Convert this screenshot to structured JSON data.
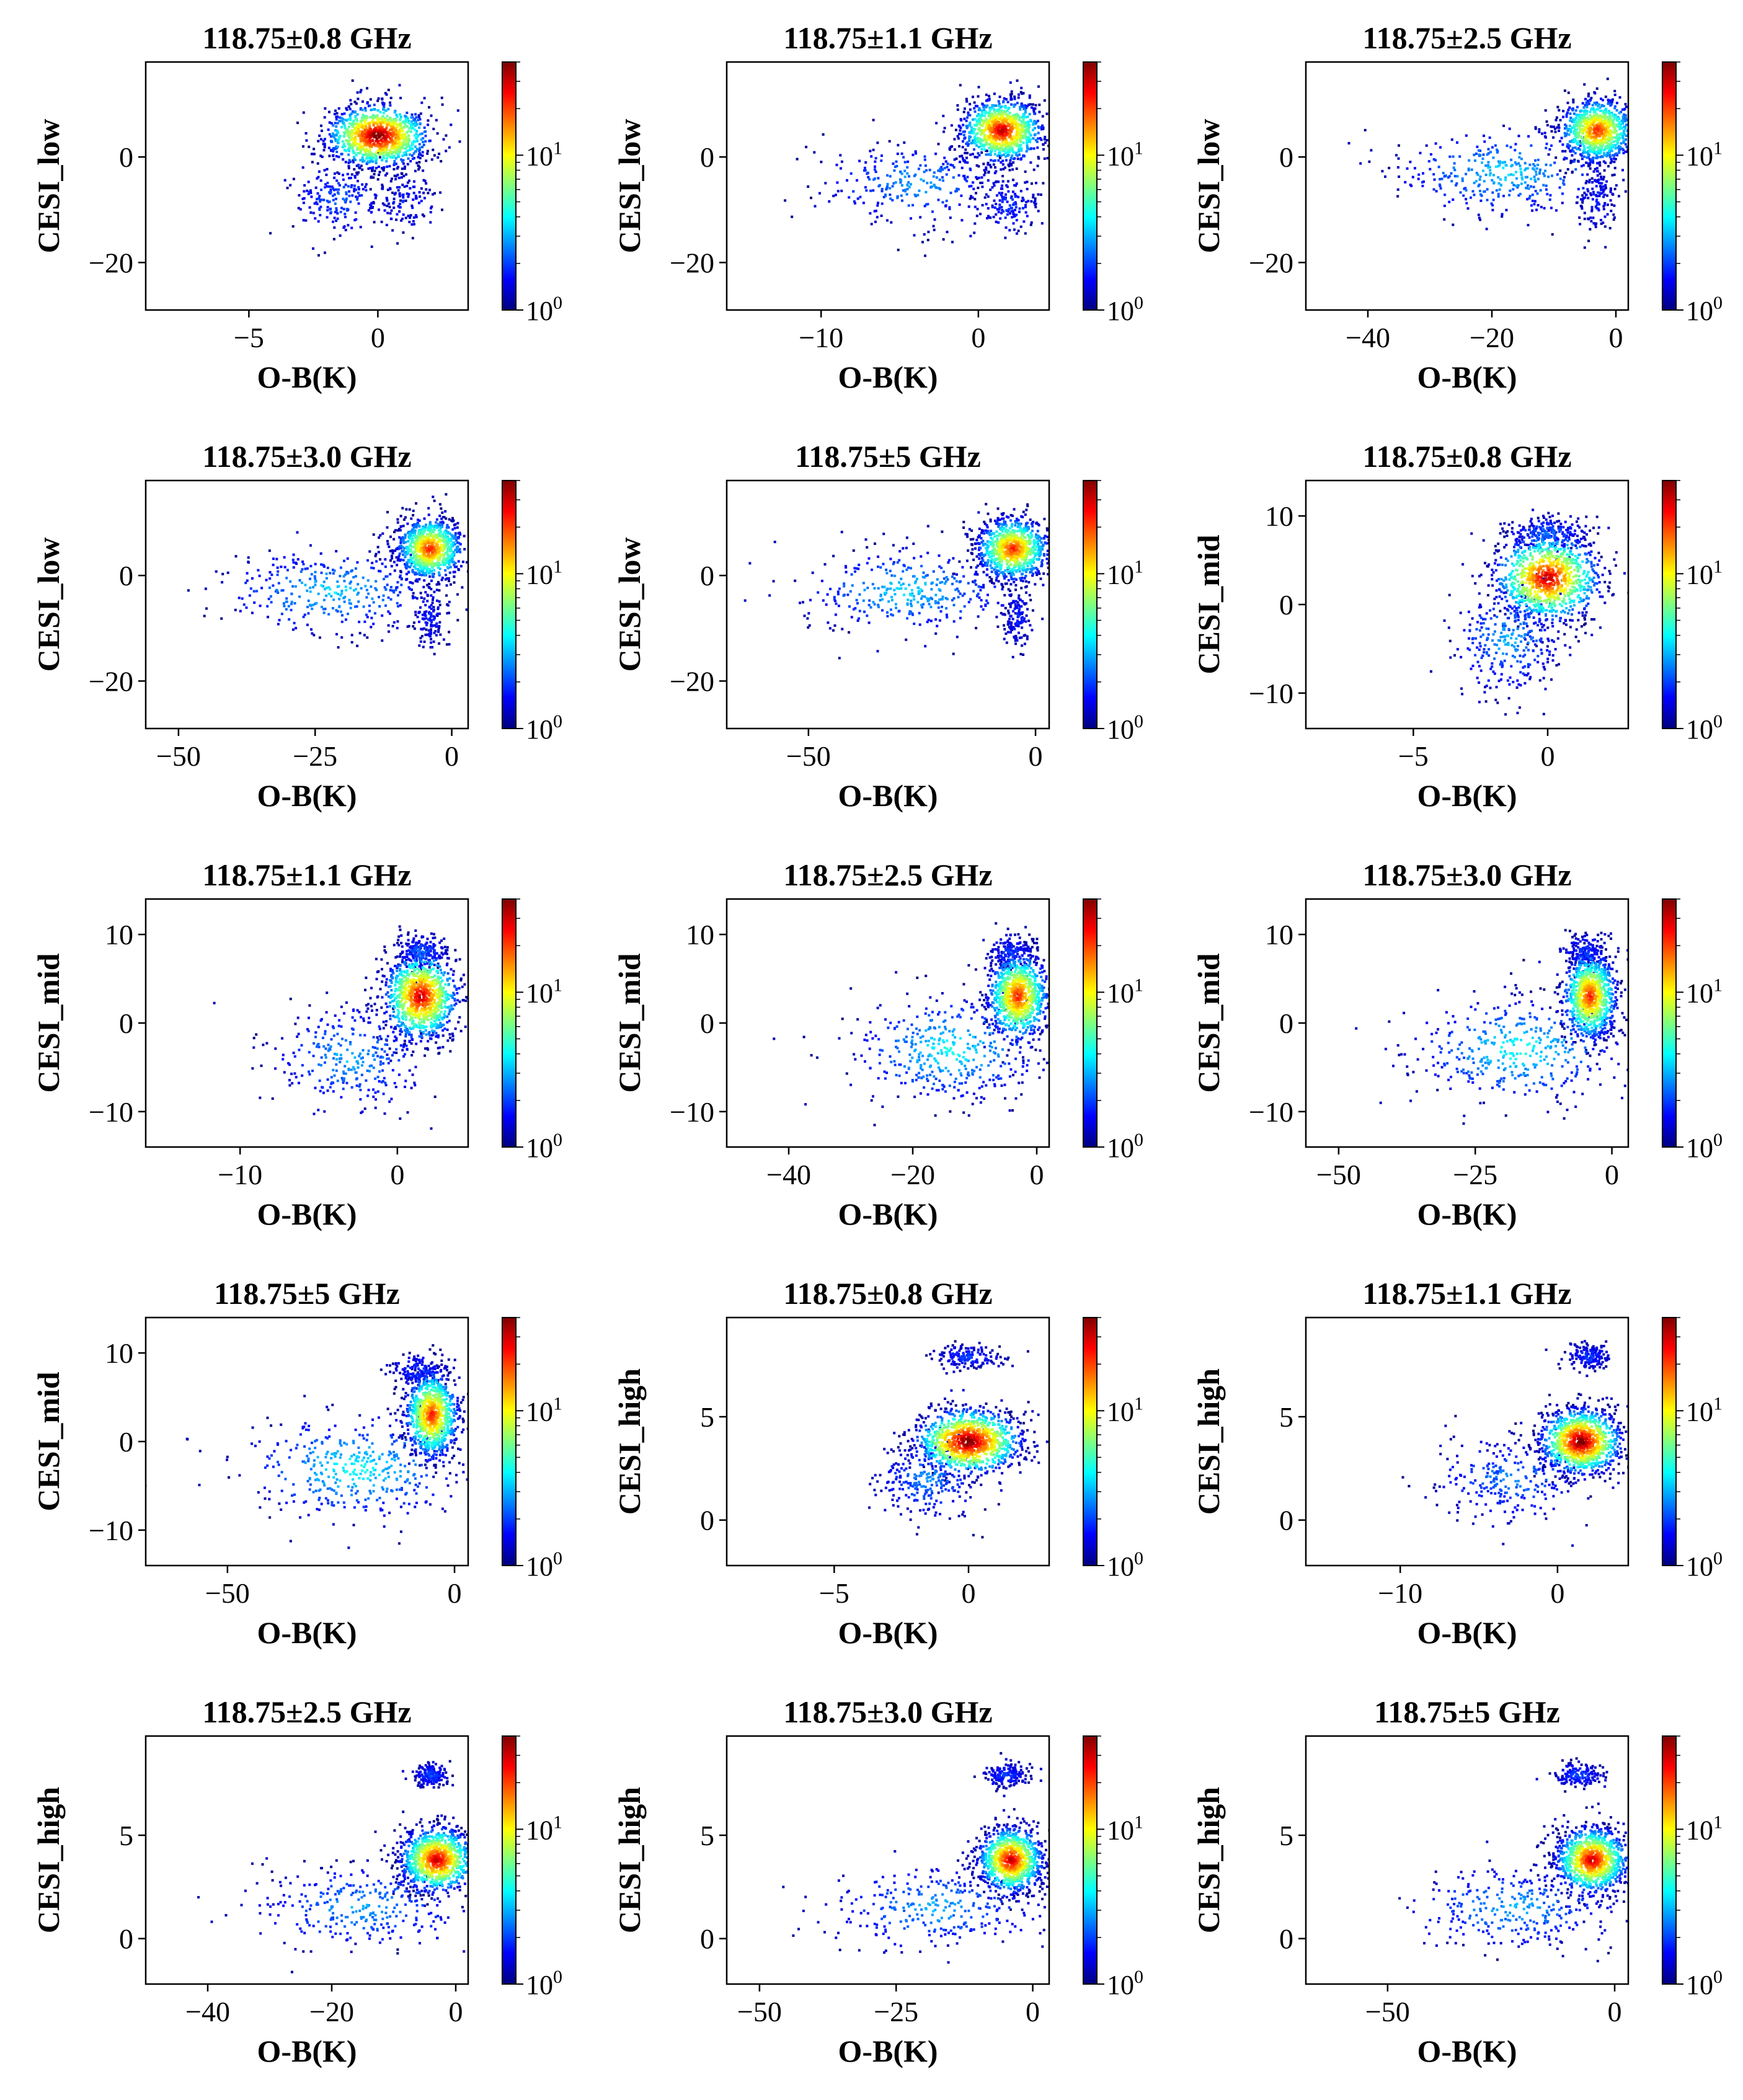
{
  "colors": {
    "colormap": [
      "#00007f",
      "#0000ff",
      "#007fff",
      "#00ffff",
      "#7fff7f",
      "#ffff00",
      "#ff7f00",
      "#ff0000",
      "#7f0000"
    ],
    "axis": "#000000",
    "background": "#ffffff"
  },
  "chart_data": [
    {
      "type": "scatter",
      "title": "118.75±0.8 GHz",
      "xlabel": "O-B(K)",
      "ylabel": "CESI_low",
      "xlim": [
        -9,
        3.5
      ],
      "ylim": [
        -29,
        18
      ],
      "xticks": [
        -5,
        0
      ],
      "yticks": [
        -20,
        0
      ],
      "colorbar": {
        "scale": "log",
        "ticks": [
          "10^0",
          "10^1"
        ],
        "range": [
          1,
          40
        ]
      },
      "clusters": [
        {
          "x": 0,
          "y": 4,
          "sx": 1.0,
          "sy": 3.0,
          "n": 1100
        },
        {
          "x": -1.5,
          "y": -8,
          "sx": 0.9,
          "sy": 3.5,
          "n": 200
        },
        {
          "x": 1.0,
          "y": -8,
          "sx": 0.6,
          "sy": 3,
          "n": 120
        }
      ],
      "density_peak": [
        0,
        4
      ]
    },
    {
      "type": "scatter",
      "title": "118.75±1.1 GHz",
      "xlabel": "O-B(K)",
      "ylabel": "CESI_low",
      "xlim": [
        -16,
        4.5
      ],
      "ylim": [
        -29,
        18
      ],
      "xticks": [
        -10,
        0
      ],
      "yticks": [
        -20,
        0
      ],
      "colorbar": {
        "scale": "log",
        "ticks": [
          "10^0",
          "10^1"
        ],
        "range": [
          1,
          40
        ]
      },
      "clusters": [
        {
          "x": 1.5,
          "y": 5,
          "sx": 1.3,
          "sy": 3,
          "n": 1000
        },
        {
          "x": -4,
          "y": -5,
          "sx": 3,
          "sy": 4,
          "n": 280
        },
        {
          "x": 2,
          "y": -9,
          "sx": 1,
          "sy": 3,
          "n": 150
        }
      ],
      "density_peak": [
        1.5,
        5
      ]
    },
    {
      "type": "scatter",
      "title": "118.75±2.5 GHz",
      "xlabel": "O-B(K)",
      "ylabel": "CESI_low",
      "xlim": [
        -50,
        2
      ],
      "ylim": [
        -29,
        18
      ],
      "xticks": [
        -40,
        -20,
        0
      ],
      "yticks": [
        -20,
        0
      ],
      "colorbar": {
        "scale": "log",
        "ticks": [
          "10^0",
          "10^1"
        ],
        "range": [
          1,
          40
        ]
      },
      "clusters": [
        {
          "x": -3,
          "y": 5,
          "sx": 3,
          "sy": 3,
          "n": 900
        },
        {
          "x": -18,
          "y": -3,
          "sx": 9,
          "sy": 4,
          "n": 350
        },
        {
          "x": -3,
          "y": -8,
          "sx": 1.5,
          "sy": 3,
          "n": 120
        }
      ],
      "density_peak": [
        -3,
        5
      ]
    },
    {
      "type": "scatter",
      "title": "118.75±3.0 GHz",
      "xlabel": "O-B(K)",
      "ylabel": "CESI_low",
      "xlim": [
        -56,
        3
      ],
      "ylim": [
        -29,
        18
      ],
      "xticks": [
        -50,
        -25,
        0
      ],
      "yticks": [
        -20,
        0
      ],
      "colorbar": {
        "scale": "log",
        "ticks": [
          "10^0",
          "10^1"
        ],
        "range": [
          1,
          40
        ]
      },
      "clusters": [
        {
          "x": -4,
          "y": 5,
          "sx": 3,
          "sy": 3,
          "n": 900
        },
        {
          "x": -22,
          "y": -3,
          "sx": 10,
          "sy": 4,
          "n": 350
        },
        {
          "x": -4,
          "y": -8,
          "sx": 1.5,
          "sy": 3,
          "n": 120
        }
      ],
      "density_peak": [
        -4,
        5
      ]
    },
    {
      "type": "scatter",
      "title": "118.75±5 GHz",
      "xlabel": "O-B(K)",
      "ylabel": "CESI_low",
      "xlim": [
        -68,
        3
      ],
      "ylim": [
        -29,
        18
      ],
      "xticks": [
        -50,
        0
      ],
      "yticks": [
        -20,
        0
      ],
      "colorbar": {
        "scale": "log",
        "ticks": [
          "10^0",
          "10^1"
        ],
        "range": [
          1,
          40
        ]
      },
      "clusters": [
        {
          "x": -5,
          "y": 5,
          "sx": 4,
          "sy": 3,
          "n": 900
        },
        {
          "x": -28,
          "y": -3,
          "sx": 12,
          "sy": 4,
          "n": 350
        },
        {
          "x": -4,
          "y": -8,
          "sx": 1.5,
          "sy": 3,
          "n": 120
        }
      ],
      "density_peak": [
        -5,
        5
      ]
    },
    {
      "type": "scatter",
      "title": "118.75±0.8 GHz",
      "xlabel": "O-B(K)",
      "ylabel": "CESI_mid",
      "xlim": [
        -9,
        3
      ],
      "ylim": [
        -14,
        14
      ],
      "xticks": [
        -5,
        0
      ],
      "yticks": [
        -10,
        0,
        10
      ],
      "colorbar": {
        "scale": "log",
        "ticks": [
          "10^0",
          "10^1"
        ],
        "range": [
          1,
          40
        ]
      },
      "clusters": [
        {
          "x": 0,
          "y": 3,
          "sx": 1.0,
          "sy": 2.5,
          "n": 1000
        },
        {
          "x": -1.5,
          "y": -4,
          "sx": 1.0,
          "sy": 3,
          "n": 300
        },
        {
          "x": 0,
          "y": 8,
          "sx": 0.8,
          "sy": 1,
          "n": 200
        }
      ],
      "density_peak": [
        0,
        3
      ]
    },
    {
      "type": "scatter",
      "title": "118.75±1.1 GHz",
      "xlabel": "O-B(K)",
      "ylabel": "CESI_mid",
      "xlim": [
        -16,
        4.5
      ],
      "ylim": [
        -14,
        14
      ],
      "xticks": [
        -10,
        0
      ],
      "yticks": [
        -10,
        0,
        10
      ],
      "colorbar": {
        "scale": "log",
        "ticks": [
          "10^0",
          "10^1"
        ],
        "range": [
          1,
          40
        ]
      },
      "clusters": [
        {
          "x": 1.5,
          "y": 3,
          "sx": 1.2,
          "sy": 2.5,
          "n": 1000
        },
        {
          "x": -3,
          "y": -4,
          "sx": 2.5,
          "sy": 3,
          "n": 300
        },
        {
          "x": 1.5,
          "y": 8,
          "sx": 0.8,
          "sy": 1,
          "n": 200
        }
      ],
      "density_peak": [
        1.5,
        3
      ]
    },
    {
      "type": "scatter",
      "title": "118.75±2.5 GHz",
      "xlabel": "O-B(K)",
      "ylabel": "CESI_mid",
      "xlim": [
        -50,
        2
      ],
      "ylim": [
        -14,
        14
      ],
      "xticks": [
        -40,
        -20,
        0
      ],
      "yticks": [
        -10,
        0,
        10
      ],
      "colorbar": {
        "scale": "log",
        "ticks": [
          "10^0",
          "10^1"
        ],
        "range": [
          1,
          40
        ]
      },
      "clusters": [
        {
          "x": -3,
          "y": 3,
          "sx": 2.5,
          "sy": 2.5,
          "n": 900
        },
        {
          "x": -14,
          "y": -3,
          "sx": 8,
          "sy": 3,
          "n": 400
        },
        {
          "x": -4,
          "y": 8,
          "sx": 2,
          "sy": 1,
          "n": 150
        }
      ],
      "density_peak": [
        -3,
        3
      ]
    },
    {
      "type": "scatter",
      "title": "118.75±3.0 GHz",
      "xlabel": "O-B(K)",
      "ylabel": "CESI_mid",
      "xlim": [
        -56,
        3
      ],
      "ylim": [
        -14,
        14
      ],
      "xticks": [
        -50,
        -25,
        0
      ],
      "yticks": [
        -10,
        0,
        10
      ],
      "colorbar": {
        "scale": "log",
        "ticks": [
          "10^0",
          "10^1"
        ],
        "range": [
          1,
          40
        ]
      },
      "clusters": [
        {
          "x": -4,
          "y": 3,
          "sx": 2.5,
          "sy": 2.5,
          "n": 900
        },
        {
          "x": -17,
          "y": -3,
          "sx": 10,
          "sy": 3,
          "n": 400
        },
        {
          "x": -5,
          "y": 8,
          "sx": 2,
          "sy": 1,
          "n": 150
        }
      ],
      "density_peak": [
        -4,
        3
      ]
    },
    {
      "type": "scatter",
      "title": "118.75±5 GHz",
      "xlabel": "O-B(K)",
      "ylabel": "CESI_mid",
      "xlim": [
        -68,
        3
      ],
      "ylim": [
        -14,
        14
      ],
      "xticks": [
        -50,
        0
      ],
      "yticks": [
        -10,
        0,
        10
      ],
      "colorbar": {
        "scale": "log",
        "ticks": [
          "10^0",
          "10^1"
        ],
        "range": [
          1,
          40
        ]
      },
      "clusters": [
        {
          "x": -5,
          "y": 3,
          "sx": 3,
          "sy": 2.5,
          "n": 900
        },
        {
          "x": -22,
          "y": -3,
          "sx": 12,
          "sy": 3,
          "n": 400
        },
        {
          "x": -8,
          "y": 8,
          "sx": 3,
          "sy": 1,
          "n": 150
        }
      ],
      "density_peak": [
        -5,
        3
      ]
    },
    {
      "type": "scatter",
      "title": "118.75±0.8 GHz",
      "xlabel": "O-B(K)",
      "ylabel": "CESI_high",
      "xlim": [
        -9,
        3
      ],
      "ylim": [
        -2.2,
        9.8
      ],
      "xticks": [
        -5,
        0
      ],
      "yticks": [
        0,
        5
      ],
      "colorbar": {
        "scale": "log",
        "ticks": [
          "10^0",
          "10^1"
        ],
        "range": [
          1,
          40
        ]
      },
      "clusters": [
        {
          "x": 0,
          "y": 3.8,
          "sx": 1.0,
          "sy": 0.8,
          "n": 1100
        },
        {
          "x": -1.5,
          "y": 2,
          "sx": 1,
          "sy": 1,
          "n": 250
        },
        {
          "x": 0,
          "y": 7.9,
          "sx": 0.6,
          "sy": 0.3,
          "n": 160
        }
      ],
      "density_peak": [
        0,
        3.8
      ]
    },
    {
      "type": "scatter",
      "title": "118.75±1.1 GHz",
      "xlabel": "O-B(K)",
      "ylabel": "CESI_high",
      "xlim": [
        -16,
        4.5
      ],
      "ylim": [
        -2.2,
        9.8
      ],
      "xticks": [
        -10,
        0
      ],
      "yticks": [
        0,
        5
      ],
      "colorbar": {
        "scale": "log",
        "ticks": [
          "10^0",
          "10^1"
        ],
        "range": [
          1,
          40
        ]
      },
      "clusters": [
        {
          "x": 1.5,
          "y": 3.8,
          "sx": 1.3,
          "sy": 0.8,
          "n": 1100
        },
        {
          "x": -3,
          "y": 2,
          "sx": 2.5,
          "sy": 1,
          "n": 250
        },
        {
          "x": 2,
          "y": 7.9,
          "sx": 0.7,
          "sy": 0.3,
          "n": 160
        }
      ],
      "density_peak": [
        1.5,
        3.8
      ]
    },
    {
      "type": "scatter",
      "title": "118.75±2.5 GHz",
      "xlabel": "O-B(K)",
      "ylabel": "CESI_high",
      "xlim": [
        -50,
        2
      ],
      "ylim": [
        -2.2,
        9.8
      ],
      "xticks": [
        -40,
        -20,
        0
      ],
      "yticks": [
        0,
        5
      ],
      "colorbar": {
        "scale": "log",
        "ticks": [
          "10^0",
          "10^1"
        ],
        "range": [
          1,
          40
        ]
      },
      "clusters": [
        {
          "x": -3,
          "y": 3.8,
          "sx": 3,
          "sy": 0.8,
          "n": 1000
        },
        {
          "x": -15,
          "y": 1.5,
          "sx": 9,
          "sy": 1,
          "n": 300
        },
        {
          "x": -4,
          "y": 7.9,
          "sx": 1.5,
          "sy": 0.3,
          "n": 160
        }
      ],
      "density_peak": [
        -3,
        3.8
      ]
    },
    {
      "type": "scatter",
      "title": "118.75±3.0 GHz",
      "xlabel": "O-B(K)",
      "ylabel": "CESI_high",
      "xlim": [
        -56,
        3
      ],
      "ylim": [
        -2.2,
        9.8
      ],
      "xticks": [
        -50,
        -25,
        0
      ],
      "yticks": [
        0,
        5
      ],
      "colorbar": {
        "scale": "log",
        "ticks": [
          "10^0",
          "10^1"
        ],
        "range": [
          1,
          40
        ]
      },
      "clusters": [
        {
          "x": -4,
          "y": 3.8,
          "sx": 3,
          "sy": 0.8,
          "n": 1000
        },
        {
          "x": -18,
          "y": 1.5,
          "sx": 10,
          "sy": 1,
          "n": 300
        },
        {
          "x": -5,
          "y": 7.9,
          "sx": 2,
          "sy": 0.3,
          "n": 160
        }
      ],
      "density_peak": [
        -4,
        3.8
      ]
    },
    {
      "type": "scatter",
      "title": "118.75±5 GHz",
      "xlabel": "O-B(K)",
      "ylabel": "CESI_high",
      "xlim": [
        -68,
        3
      ],
      "ylim": [
        -2.2,
        9.8
      ],
      "xticks": [
        -50,
        0
      ],
      "yticks": [
        0,
        5
      ],
      "colorbar": {
        "scale": "log",
        "ticks": [
          "10^0",
          "10^1"
        ],
        "range": [
          1,
          40
        ]
      },
      "clusters": [
        {
          "x": -5,
          "y": 3.8,
          "sx": 4,
          "sy": 0.8,
          "n": 1000
        },
        {
          "x": -22,
          "y": 1.5,
          "sx": 12,
          "sy": 1,
          "n": 300
        },
        {
          "x": -8,
          "y": 7.9,
          "sx": 3,
          "sy": 0.3,
          "n": 160
        }
      ],
      "density_peak": [
        -5,
        3.8
      ]
    }
  ]
}
